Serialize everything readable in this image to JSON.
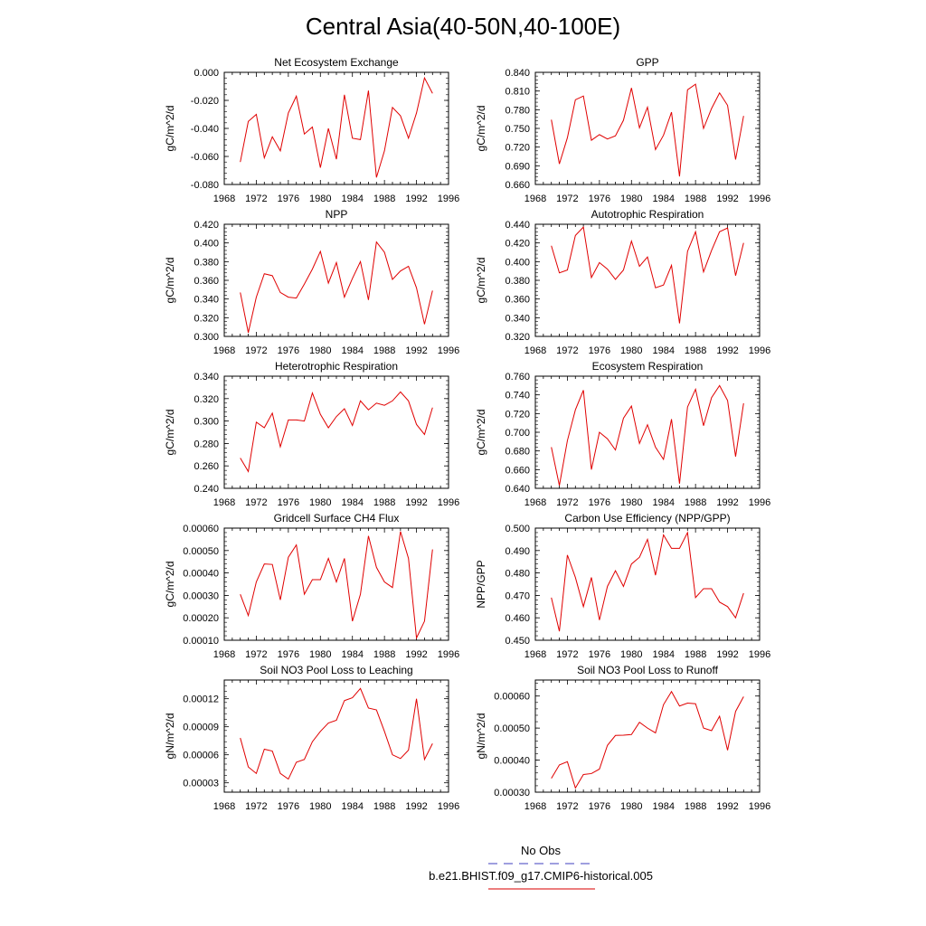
{
  "figure": {
    "title": "Central Asia(40-50N,40-100E)"
  },
  "legend": {
    "items": [
      {
        "label": "No Obs",
        "color": "#6666cc",
        "dash": "dashed"
      },
      {
        "label": "b.e21.BHIST.f09_g17.CMIP6-historical.005",
        "color": "#e03030",
        "dash": "solid"
      }
    ]
  },
  "chart_data": [
    {
      "type": "line",
      "title": "Net Ecosystem Exchange",
      "ylabel": "gC/m^2/d",
      "xlabel": "",
      "xlim": [
        1968,
        1996
      ],
      "xticks": [
        1968,
        1972,
        1976,
        1980,
        1984,
        1988,
        1992,
        1996
      ],
      "ylim": [
        -0.08,
        0.0
      ],
      "yticks": [
        "0.000",
        "-0.020",
        "-0.040",
        "-0.060",
        "-0.080"
      ],
      "ytick_values": [
        0.0,
        -0.02,
        -0.04,
        -0.06,
        -0.08
      ],
      "series": [
        {
          "color": "#e00000",
          "x": [
            1970,
            1971,
            1972,
            1973,
            1974,
            1975,
            1976,
            1977,
            1978,
            1979,
            1980,
            1981,
            1982,
            1983,
            1984,
            1985,
            1986,
            1987,
            1988,
            1989,
            1990,
            1991,
            1992,
            1993,
            1994
          ],
          "values": [
            -0.064,
            -0.035,
            -0.03,
            -0.061,
            -0.046,
            -0.056,
            -0.029,
            -0.017,
            -0.044,
            -0.039,
            -0.068,
            -0.04,
            -0.062,
            -0.016,
            -0.047,
            -0.048,
            -0.013,
            -0.075,
            -0.056,
            -0.025,
            -0.031,
            -0.047,
            -0.029,
            -0.004,
            -0.015
          ]
        }
      ]
    },
    {
      "type": "line",
      "title": "GPP",
      "ylabel": "gC/m^2/d",
      "xlabel": "",
      "xlim": [
        1968,
        1996
      ],
      "xticks": [
        1968,
        1972,
        1976,
        1980,
        1984,
        1988,
        1992,
        1996
      ],
      "ylim": [
        0.66,
        0.84
      ],
      "yticks": [
        "0.840",
        "0.810",
        "0.780",
        "0.750",
        "0.720",
        "0.690",
        "0.660"
      ],
      "ytick_values": [
        0.84,
        0.81,
        0.78,
        0.75,
        0.72,
        0.69,
        0.66
      ],
      "series": [
        {
          "color": "#e00000",
          "x": [
            1970,
            1971,
            1972,
            1973,
            1974,
            1975,
            1976,
            1977,
            1978,
            1979,
            1980,
            1981,
            1982,
            1983,
            1984,
            1985,
            1986,
            1987,
            1988,
            1989,
            1990,
            1991,
            1992,
            1993,
            1994
          ],
          "values": [
            0.764,
            0.693,
            0.735,
            0.796,
            0.802,
            0.731,
            0.74,
            0.733,
            0.738,
            0.763,
            0.815,
            0.751,
            0.784,
            0.716,
            0.739,
            0.776,
            0.673,
            0.812,
            0.821,
            0.75,
            0.782,
            0.807,
            0.787,
            0.7,
            0.77
          ]
        }
      ]
    },
    {
      "type": "line",
      "title": "NPP",
      "ylabel": "gC/m^2/d",
      "xlabel": "",
      "xlim": [
        1968,
        1996
      ],
      "xticks": [
        1968,
        1972,
        1976,
        1980,
        1984,
        1988,
        1992,
        1996
      ],
      "ylim": [
        0.3,
        0.42
      ],
      "yticks": [
        "0.420",
        "0.400",
        "0.380",
        "0.360",
        "0.340",
        "0.320",
        "0.300"
      ],
      "ytick_values": [
        0.42,
        0.4,
        0.38,
        0.36,
        0.34,
        0.32,
        0.3
      ],
      "series": [
        {
          "color": "#e00000",
          "x": [
            1970,
            1971,
            1972,
            1973,
            1974,
            1975,
            1976,
            1977,
            1978,
            1979,
            1980,
            1981,
            1982,
            1983,
            1984,
            1985,
            1986,
            1987,
            1988,
            1989,
            1990,
            1991,
            1992,
            1993,
            1994
          ],
          "values": [
            0.347,
            0.304,
            0.342,
            0.367,
            0.365,
            0.347,
            0.342,
            0.341,
            0.356,
            0.372,
            0.391,
            0.357,
            0.379,
            0.342,
            0.362,
            0.38,
            0.339,
            0.401,
            0.39,
            0.361,
            0.37,
            0.375,
            0.352,
            0.313,
            0.349
          ]
        }
      ]
    },
    {
      "type": "line",
      "title": "Autotrophic Respiration",
      "ylabel": "gC/m^2/d",
      "xlabel": "",
      "xlim": [
        1968,
        1996
      ],
      "xticks": [
        1968,
        1972,
        1976,
        1980,
        1984,
        1988,
        1992,
        1996
      ],
      "ylim": [
        0.32,
        0.44
      ],
      "yticks": [
        "0.440",
        "0.420",
        "0.400",
        "0.380",
        "0.360",
        "0.340",
        "0.320"
      ],
      "ytick_values": [
        0.44,
        0.42,
        0.4,
        0.38,
        0.36,
        0.34,
        0.32
      ],
      "series": [
        {
          "color": "#e00000",
          "x": [
            1970,
            1971,
            1972,
            1973,
            1974,
            1975,
            1976,
            1977,
            1978,
            1979,
            1980,
            1981,
            1982,
            1983,
            1984,
            1985,
            1986,
            1987,
            1988,
            1989,
            1990,
            1991,
            1992,
            1993,
            1994
          ],
          "values": [
            0.417,
            0.388,
            0.391,
            0.428,
            0.437,
            0.383,
            0.399,
            0.392,
            0.381,
            0.391,
            0.422,
            0.395,
            0.405,
            0.372,
            0.375,
            0.396,
            0.334,
            0.411,
            0.432,
            0.389,
            0.412,
            0.432,
            0.436,
            0.385,
            0.42
          ]
        }
      ]
    },
    {
      "type": "line",
      "title": "Heterotrophic Respiration",
      "ylabel": "gC/m^2/d",
      "xlabel": "",
      "xlim": [
        1968,
        1996
      ],
      "xticks": [
        1968,
        1972,
        1976,
        1980,
        1984,
        1988,
        1992,
        1996
      ],
      "ylim": [
        0.24,
        0.34
      ],
      "yticks": [
        "0.340",
        "0.320",
        "0.300",
        "0.280",
        "0.260",
        "0.240"
      ],
      "ytick_values": [
        0.34,
        0.32,
        0.3,
        0.28,
        0.26,
        0.24
      ],
      "series": [
        {
          "color": "#e00000",
          "x": [
            1970,
            1971,
            1972,
            1973,
            1974,
            1975,
            1976,
            1977,
            1978,
            1979,
            1980,
            1981,
            1982,
            1983,
            1984,
            1985,
            1986,
            1987,
            1988,
            1989,
            1990,
            1991,
            1992,
            1993,
            1994
          ],
          "values": [
            0.267,
            0.255,
            0.299,
            0.294,
            0.307,
            0.277,
            0.301,
            0.301,
            0.3,
            0.325,
            0.306,
            0.294,
            0.304,
            0.311,
            0.296,
            0.318,
            0.31,
            0.316,
            0.314,
            0.318,
            0.326,
            0.318,
            0.297,
            0.288,
            0.312
          ]
        }
      ]
    },
    {
      "type": "line",
      "title": "Ecosystem Respiration",
      "ylabel": "gC/m^2/d",
      "xlabel": "",
      "xlim": [
        1968,
        1996
      ],
      "xticks": [
        1968,
        1972,
        1976,
        1980,
        1984,
        1988,
        1992,
        1996
      ],
      "ylim": [
        0.64,
        0.76
      ],
      "yticks": [
        "0.760",
        "0.740",
        "0.720",
        "0.700",
        "0.680",
        "0.660",
        "0.640"
      ],
      "ytick_values": [
        0.76,
        0.74,
        0.72,
        0.7,
        0.68,
        0.66,
        0.64
      ],
      "series": [
        {
          "color": "#e00000",
          "x": [
            1970,
            1971,
            1972,
            1973,
            1974,
            1975,
            1976,
            1977,
            1978,
            1979,
            1980,
            1981,
            1982,
            1983,
            1984,
            1985,
            1986,
            1987,
            1988,
            1989,
            1990,
            1991,
            1992,
            1993,
            1994
          ],
          "values": [
            0.684,
            0.643,
            0.691,
            0.724,
            0.745,
            0.66,
            0.7,
            0.693,
            0.681,
            0.715,
            0.728,
            0.688,
            0.708,
            0.684,
            0.671,
            0.714,
            0.645,
            0.727,
            0.746,
            0.707,
            0.737,
            0.75,
            0.734,
            0.674,
            0.731
          ]
        }
      ]
    },
    {
      "type": "line",
      "title": "Gridcell Surface CH4 Flux",
      "ylabel": "gC/m^2/d",
      "xlabel": "",
      "xlim": [
        1968,
        1996
      ],
      "xticks": [
        1968,
        1972,
        1976,
        1980,
        1984,
        1988,
        1992,
        1996
      ],
      "ylim": [
        0.0001,
        0.0006
      ],
      "yticks": [
        "0.00060",
        "0.00050",
        "0.00040",
        "0.00030",
        "0.00020",
        "0.00010"
      ],
      "ytick_values": [
        0.0006,
        0.0005,
        0.0004,
        0.0003,
        0.0002,
        0.0001
      ],
      "series": [
        {
          "color": "#e00000",
          "x": [
            1970,
            1971,
            1972,
            1973,
            1974,
            1975,
            1976,
            1977,
            1978,
            1979,
            1980,
            1981,
            1982,
            1983,
            1984,
            1985,
            1986,
            1987,
            1988,
            1989,
            1990,
            1991,
            1992,
            1993,
            1994
          ],
          "values": [
            0.000305,
            0.00021,
            0.00036,
            0.00044,
            0.000438,
            0.00028,
            0.00047,
            0.000525,
            0.000305,
            0.00037,
            0.00037,
            0.000465,
            0.00036,
            0.000465,
            0.000185,
            0.000305,
            0.000565,
            0.000425,
            0.00036,
            0.000335,
            0.000585,
            0.000465,
            0.00011,
            0.000185,
            0.000505
          ]
        }
      ]
    },
    {
      "type": "line",
      "title": "Carbon Use Efficiency (NPP/GPP)",
      "ylabel": "NPP/GPP",
      "xlabel": "",
      "xlim": [
        1968,
        1996
      ],
      "xticks": [
        1968,
        1972,
        1976,
        1980,
        1984,
        1988,
        1992,
        1996
      ],
      "ylim": [
        0.45,
        0.5
      ],
      "yticks": [
        "0.500",
        "0.490",
        "0.480",
        "0.470",
        "0.460",
        "0.450"
      ],
      "ytick_values": [
        0.5,
        0.49,
        0.48,
        0.47,
        0.46,
        0.45
      ],
      "series": [
        {
          "color": "#e00000",
          "x": [
            1970,
            1971,
            1972,
            1973,
            1974,
            1975,
            1976,
            1977,
            1978,
            1979,
            1980,
            1981,
            1982,
            1983,
            1984,
            1985,
            1986,
            1987,
            1988,
            1989,
            1990,
            1991,
            1992,
            1993,
            1994
          ],
          "values": [
            0.469,
            0.454,
            0.488,
            0.478,
            0.465,
            0.478,
            0.459,
            0.474,
            0.481,
            0.474,
            0.484,
            0.487,
            0.495,
            0.479,
            0.497,
            0.491,
            0.491,
            0.498,
            0.469,
            0.473,
            0.473,
            0.467,
            0.465,
            0.46,
            0.471
          ]
        }
      ]
    },
    {
      "type": "line",
      "title": "Soil NO3 Pool Loss to Leaching",
      "ylabel": "gN/m^2/d",
      "xlabel": "",
      "xlim": [
        1968,
        1996
      ],
      "xticks": [
        1968,
        1972,
        1976,
        1980,
        1984,
        1988,
        1992,
        1996
      ],
      "ylim": [
        2e-05,
        0.00014
      ],
      "yticks": [
        "0.00012",
        "0.00009",
        "0.00006",
        "0.00003"
      ],
      "ytick_values": [
        0.00012,
        9e-05,
        6e-05,
        3e-05
      ],
      "series": [
        {
          "color": "#e00000",
          "x": [
            1970,
            1971,
            1972,
            1973,
            1974,
            1975,
            1976,
            1977,
            1978,
            1979,
            1980,
            1981,
            1982,
            1983,
            1984,
            1985,
            1986,
            1987,
            1988,
            1989,
            1990,
            1991,
            1992,
            1993,
            1994
          ],
          "values": [
            7.8e-05,
            4.7e-05,
            4e-05,
            6.6e-05,
            6.4e-05,
            4e-05,
            3.4e-05,
            5.2e-05,
            5.5e-05,
            7.4e-05,
            8.5e-05,
            9.4e-05,
            9.7e-05,
            0.000118,
            0.000121,
            0.000131,
            0.00011,
            0.000108,
            8.5e-05,
            6e-05,
            5.6e-05,
            6.5e-05,
            0.00012,
            5.5e-05,
            7.2e-05
          ]
        }
      ]
    },
    {
      "type": "line",
      "title": "Soil NO3 Pool Loss to Runoff",
      "ylabel": "gN/m^2/d",
      "xlabel": "",
      "xlim": [
        1968,
        1996
      ],
      "xticks": [
        1968,
        1972,
        1976,
        1980,
        1984,
        1988,
        1992,
        1996
      ],
      "ylim": [
        0.0003,
        0.00065
      ],
      "yticks": [
        "0.00060",
        "0.00050",
        "0.00040",
        "0.00030"
      ],
      "ytick_values": [
        0.0006,
        0.0005,
        0.0004,
        0.0003
      ],
      "series": [
        {
          "color": "#e00000",
          "x": [
            1970,
            1971,
            1972,
            1973,
            1974,
            1975,
            1976,
            1977,
            1978,
            1979,
            1980,
            1981,
            1982,
            1983,
            1984,
            1985,
            1986,
            1987,
            1988,
            1989,
            1990,
            1991,
            1992,
            1993,
            1994
          ],
          "values": [
            0.000343,
            0.000385,
            0.000395,
            0.000313,
            0.000355,
            0.000358,
            0.000372,
            0.000446,
            0.000477,
            0.000478,
            0.00048,
            0.000518,
            0.0005,
            0.000485,
            0.000573,
            0.000614,
            0.000569,
            0.000578,
            0.000576,
            0.0005,
            0.000492,
            0.000537,
            0.000431,
            0.000552,
            0.000598
          ]
        }
      ]
    }
  ]
}
